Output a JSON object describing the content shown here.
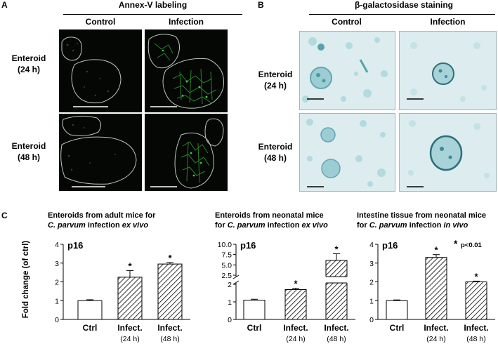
{
  "panel_a": {
    "letter": "A",
    "title": "Annex-V labeling",
    "columns": [
      "Control",
      "Infection"
    ],
    "rows": [
      {
        "line1": "Enteroid",
        "line2": "(24 h)"
      },
      {
        "line1": "Enteroid",
        "line2": "(48 h)"
      }
    ]
  },
  "panel_b": {
    "letter": "B",
    "title": "β-galactosidase staining",
    "columns": [
      "Control",
      "Infection"
    ],
    "rows": [
      {
        "line1": "Enteroid",
        "line2": "(24 h)"
      },
      {
        "line1": "Enteroid",
        "line2": "(48 h)"
      }
    ]
  },
  "panel_c": {
    "letter": "C",
    "ylabel": "Fold change (of ctrl)"
  },
  "chart_data": [
    {
      "type": "bar",
      "title_line1": "Enteroids from adult mice for",
      "title_line2_italic": "C. parvum",
      "title_line2_mid": " infection ",
      "title_line2_italic2": "ex vivo",
      "gene": "p16",
      "categories": [
        "Ctrl",
        "Infect.",
        "Infect."
      ],
      "sublabels": [
        "",
        "(24 h)",
        "(48 h)"
      ],
      "values": [
        1.0,
        2.25,
        2.95
      ],
      "errors": [
        0.05,
        0.35,
        0.08
      ],
      "significant": [
        "",
        "*",
        "*"
      ],
      "ylim": [
        0,
        4
      ],
      "yticks": [
        "0",
        "1",
        "2",
        "3",
        "4"
      ],
      "ytick_values": [
        0,
        1,
        2,
        3,
        4
      ]
    },
    {
      "type": "bar",
      "title_line1": "Enteroids from neonatal mice",
      "title_line2_pre": "for ",
      "title_line2_italic": "C. parvum",
      "title_line2_mid": " infection ",
      "title_line2_italic2": "ex vivo",
      "gene": "p16",
      "categories": [
        "Ctrl",
        "Infect.",
        "Infect."
      ],
      "sublabels": [
        "",
        "(24 h)",
        "(48 h)"
      ],
      "values": [
        1.1,
        1.7,
        6.1
      ],
      "errors": [
        0.05,
        0.08,
        1.6
      ],
      "significant": [
        "",
        "*",
        "*"
      ],
      "broken_axis": true,
      "yticks": [
        "0",
        "1",
        "2",
        "2.5",
        "5.0",
        "7.5",
        "10.0"
      ],
      "ytick_values": [
        0,
        1,
        2,
        2.5,
        5.0,
        7.5,
        10.0
      ]
    },
    {
      "type": "bar",
      "title_line1": "Intestine tissue from neonatal mice",
      "title_line2_pre": "for ",
      "title_line2_italic": "C. parvum",
      "title_line2_mid": " infection ",
      "title_line2_italic2": "in vivo",
      "gene": "p16",
      "annotation_star": "*",
      "annotation_text": "p<0.01",
      "categories": [
        "Ctrl",
        "Infect.",
        "Infect."
      ],
      "sublabels": [
        "",
        "(24 h)",
        "(48 h)"
      ],
      "values": [
        1.0,
        3.3,
        2.0
      ],
      "errors": [
        0.04,
        0.15,
        0.04
      ],
      "significant": [
        "",
        "*",
        "*"
      ],
      "ylim": [
        0,
        4
      ],
      "yticks": [
        "0",
        "1",
        "2",
        "3",
        "4"
      ],
      "ytick_values": [
        0,
        1,
        2,
        3,
        4
      ]
    }
  ]
}
